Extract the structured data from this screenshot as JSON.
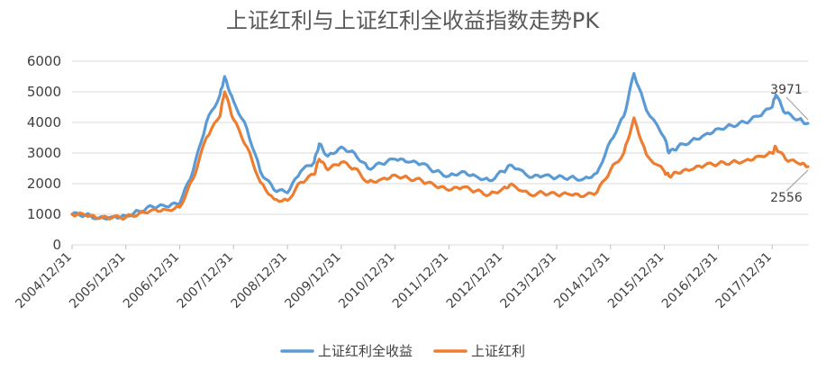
{
  "chart_data": {
    "type": "line",
    "title": "上证红利与上证红利全收益指数走势PK",
    "xlabel": "",
    "ylabel": "",
    "ylim": [
      0,
      6000
    ],
    "yticks": [
      0,
      1000,
      2000,
      3000,
      4000,
      5000,
      6000
    ],
    "x_tick_labels": [
      "2004/12/31",
      "2005/12/31",
      "2006/12/31",
      "2007/12/31",
      "2008/12/31",
      "2009/12/31",
      "2010/12/31",
      "2011/12/31",
      "2012/12/31",
      "2013/12/31",
      "2014/12/31",
      "2015/12/31",
      "2016/12/31",
      "2017/12/31"
    ],
    "grid": true,
    "legend_position": "bottom",
    "x": [
      "2004/12/31",
      "2005/03/31",
      "2005/06/30",
      "2005/09/30",
      "2005/12/31",
      "2006/03/31",
      "2006/06/30",
      "2006/09/30",
      "2006/12/31",
      "2007/03/31",
      "2007/06/30",
      "2007/09/30",
      "2007/10/31",
      "2007/12/31",
      "2008/03/31",
      "2008/06/30",
      "2008/09/30",
      "2008/12/31",
      "2009/03/31",
      "2009/06/30",
      "2009/08/03",
      "2009/09/30",
      "2009/12/31",
      "2010/03/31",
      "2010/06/30",
      "2010/09/30",
      "2010/12/31",
      "2011/03/31",
      "2011/06/30",
      "2011/09/30",
      "2011/12/31",
      "2012/03/31",
      "2012/06/30",
      "2012/09/30",
      "2012/12/31",
      "2013/02/28",
      "2013/06/30",
      "2013/09/30",
      "2013/12/31",
      "2014/03/31",
      "2014/06/30",
      "2014/09/30",
      "2014/12/31",
      "2015/03/31",
      "2015/06/08",
      "2015/08/31",
      "2015/12/31",
      "2016/01/31",
      "2016/03/31",
      "2016/06/30",
      "2016/09/30",
      "2016/12/31",
      "2017/03/31",
      "2017/06/30",
      "2017/09/30",
      "2017/12/31",
      "2018/01/24",
      "2018/03/31",
      "2018/06/30",
      "2018/08/31"
    ],
    "series": [
      {
        "name": "上证红利全收益",
        "color": "#5B9BD5",
        "values": [
          1000,
          980,
          880,
          920,
          950,
          1100,
          1250,
          1250,
          1350,
          2400,
          4000,
          4900,
          5500,
          4700,
          3800,
          2400,
          1800,
          1700,
          2400,
          2700,
          3300,
          2900,
          3200,
          3000,
          2500,
          2650,
          2800,
          2700,
          2650,
          2400,
          2250,
          2400,
          2250,
          2100,
          2400,
          2600,
          2200,
          2250,
          2200,
          2200,
          2150,
          2350,
          3400,
          4200,
          5600,
          4400,
          3500,
          3000,
          3200,
          3400,
          3600,
          3800,
          3900,
          4000,
          4200,
          4500,
          4900,
          4300,
          4100,
          3971
        ]
      },
      {
        "name": "上证红利",
        "color": "#ED7D31",
        "values": [
          1000,
          970,
          860,
          890,
          900,
          1030,
          1150,
          1150,
          1230,
          2150,
          3500,
          4200,
          5000,
          4100,
          3200,
          2050,
          1500,
          1450,
          2050,
          2300,
          2800,
          2450,
          2700,
          2500,
          2050,
          2150,
          2280,
          2180,
          2100,
          1920,
          1780,
          1880,
          1760,
          1640,
          1840,
          1990,
          1650,
          1700,
          1640,
          1640,
          1580,
          1720,
          2450,
          3000,
          4150,
          2950,
          2400,
          2250,
          2350,
          2450,
          2600,
          2650,
          2700,
          2750,
          2900,
          3000,
          3200,
          2800,
          2650,
          2556
        ]
      }
    ],
    "annotations": [
      {
        "text": "3971",
        "series": 0
      },
      {
        "text": "2556",
        "series": 1
      }
    ]
  }
}
